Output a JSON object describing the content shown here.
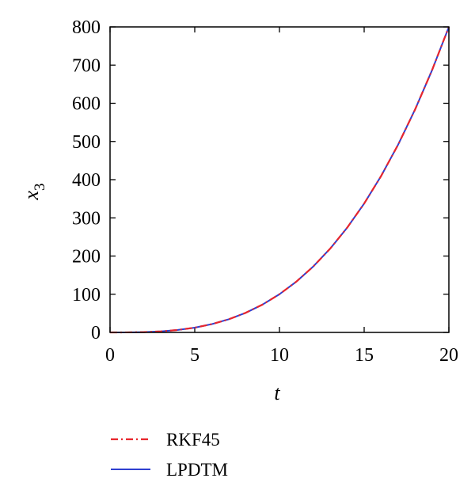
{
  "chart_data": {
    "type": "line",
    "xlabel": "t",
    "ylabel": {
      "base": "x",
      "subscript": "3"
    },
    "xlim": [
      0,
      20
    ],
    "ylim": [
      0,
      800
    ],
    "xticks": [
      0,
      5,
      10,
      15,
      20
    ],
    "yticks": [
      0,
      100,
      200,
      300,
      400,
      500,
      600,
      700,
      800
    ],
    "grid": false,
    "legend_position": "bottom",
    "series": [
      {
        "name": "RKF45",
        "style": "dash-dot",
        "color": "#e8262d",
        "x": [
          0,
          1,
          2,
          3,
          4,
          5,
          6,
          7,
          8,
          9,
          10,
          11,
          12,
          13,
          14,
          15,
          16,
          17,
          18,
          19,
          20
        ],
        "y": [
          0,
          0.1,
          0.8,
          2.7,
          6.4,
          12.5,
          21.6,
          34.3,
          51.2,
          72.9,
          100,
          133.1,
          172.8,
          219.7,
          274.4,
          337.5,
          409.6,
          491.3,
          583.2,
          685.9,
          800
        ]
      },
      {
        "name": "LPDTM",
        "style": "solid",
        "color": "#2f3fd0",
        "x": [
          0,
          1,
          2,
          3,
          4,
          5,
          6,
          7,
          8,
          9,
          10,
          11,
          12,
          13,
          14,
          15,
          16,
          17,
          18,
          19,
          20
        ],
        "y": [
          0,
          0.1,
          0.8,
          2.7,
          6.4,
          12.5,
          21.6,
          34.3,
          51.2,
          72.9,
          100,
          133.1,
          172.8,
          219.7,
          274.4,
          337.5,
          409.6,
          491.3,
          583.2,
          685.9,
          800
        ]
      }
    ]
  }
}
